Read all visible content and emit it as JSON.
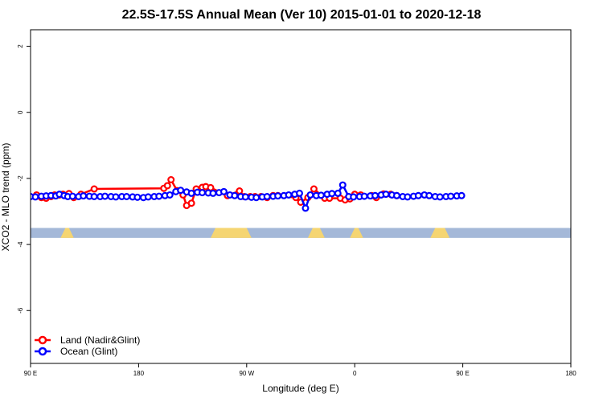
{
  "chart_data": {
    "type": "line",
    "title": "22.5S-17.5S Annual Mean (Ver 10)   2015-01-01 to 2020-12-18",
    "xlabel": "Longitude (deg E)",
    "ylabel": "XCO2 - MLO trend (ppm)",
    "xlim": [
      90,
      450
    ],
    "ylim": [
      -7.6,
      2.5
    ],
    "x_ticks": [
      {
        "value": 90,
        "label": "90 E"
      },
      {
        "value": 180,
        "label": "180"
      },
      {
        "value": 270,
        "label": "90 W"
      },
      {
        "value": 360,
        "label": "0"
      },
      {
        "value": 450,
        "label": "90 E"
      },
      {
        "value": 540,
        "label": "180"
      }
    ],
    "y_ticks": [
      {
        "value": 2,
        "label": "2"
      },
      {
        "value": 0,
        "label": "0"
      },
      {
        "value": -2,
        "label": "-2"
      },
      {
        "value": -4,
        "label": "-4"
      },
      {
        "value": -6,
        "label": "-6"
      }
    ],
    "legend": {
      "position": "bottom-left"
    },
    "x_axis_span": [
      90,
      540
    ],
    "land_ocean_band": {
      "ymin": -3.8,
      "ymax": -3.5,
      "ocean_color": "#a4b8d8",
      "land_color": "#f5d572",
      "land_ranges": [
        [
          117,
          124
        ],
        [
          242,
          272
        ],
        [
          323,
          333
        ],
        [
          358,
          365
        ],
        [
          425,
          437
        ]
      ]
    },
    "series": [
      {
        "name": "Land (Nadir&Glint)",
        "color": "#ff0000",
        "x": [
          95,
          99,
          103,
          107,
          110,
          114,
          117,
          122,
          126,
          132,
          143,
          201,
          204,
          207,
          212,
          217,
          220,
          224,
          228,
          233,
          236,
          240,
          254,
          264,
          268,
          273,
          277,
          282,
          287,
          292,
          296,
          311,
          315,
          321,
          326,
          335,
          339,
          348,
          352,
          356,
          360,
          365,
          374,
          378,
          384,
          390,
          395
        ],
        "y": [
          -2.5,
          -2.58,
          -2.6,
          -2.55,
          -2.5,
          -2.5,
          -2.48,
          -2.46,
          -2.58,
          -2.48,
          -2.32,
          -2.3,
          -2.22,
          -2.04,
          -2.37,
          -2.5,
          -2.82,
          -2.75,
          -2.32,
          -2.27,
          -2.25,
          -2.28,
          -2.52,
          -2.38,
          -2.55,
          -2.55,
          -2.55,
          -2.55,
          -2.58,
          -2.52,
          -2.52,
          -2.58,
          -2.72,
          -2.58,
          -2.32,
          -2.6,
          -2.6,
          -2.6,
          -2.65,
          -2.62,
          -2.48,
          -2.5,
          -2.52,
          -2.58,
          -2.47,
          -2.48,
          -2.52
        ]
      },
      {
        "name": "Ocean (Glint)",
        "color": "#0000ff",
        "x": [
          90,
          94,
          99,
          103,
          107,
          111,
          114,
          118,
          121,
          125,
          130,
          134,
          139,
          143,
          148,
          152,
          157,
          161,
          166,
          170,
          175,
          179,
          184,
          188,
          193,
          197,
          202,
          206,
          211,
          215,
          220,
          224,
          229,
          233,
          238,
          242,
          247,
          251,
          256,
          260,
          265,
          269,
          274,
          278,
          283,
          287,
          292,
          296,
          301,
          305,
          310,
          314,
          319,
          323,
          328,
          332,
          337,
          341,
          346,
          350,
          355,
          359,
          364,
          368,
          373,
          377,
          382,
          386,
          391,
          395,
          400,
          404,
          409,
          413,
          418,
          422,
          427,
          431,
          436,
          440,
          445,
          449
        ],
        "y": [
          -2.55,
          -2.56,
          -2.54,
          -2.53,
          -2.52,
          -2.53,
          -2.48,
          -2.52,
          -2.55,
          -2.54,
          -2.55,
          -2.53,
          -2.54,
          -2.55,
          -2.55,
          -2.54,
          -2.55,
          -2.56,
          -2.55,
          -2.55,
          -2.56,
          -2.57,
          -2.58,
          -2.56,
          -2.55,
          -2.54,
          -2.52,
          -2.5,
          -2.4,
          -2.36,
          -2.41,
          -2.45,
          -2.42,
          -2.43,
          -2.44,
          -2.45,
          -2.43,
          -2.4,
          -2.5,
          -2.52,
          -2.55,
          -2.56,
          -2.57,
          -2.58,
          -2.56,
          -2.55,
          -2.54,
          -2.53,
          -2.52,
          -2.5,
          -2.48,
          -2.45,
          -2.9,
          -2.5,
          -2.52,
          -2.51,
          -2.48,
          -2.46,
          -2.45,
          -2.2,
          -2.55,
          -2.56,
          -2.55,
          -2.54,
          -2.53,
          -2.52,
          -2.5,
          -2.48,
          -2.5,
          -2.52,
          -2.55,
          -2.56,
          -2.54,
          -2.52,
          -2.5,
          -2.52,
          -2.55,
          -2.56,
          -2.55,
          -2.54,
          -2.53,
          -2.52
        ]
      }
    ]
  }
}
